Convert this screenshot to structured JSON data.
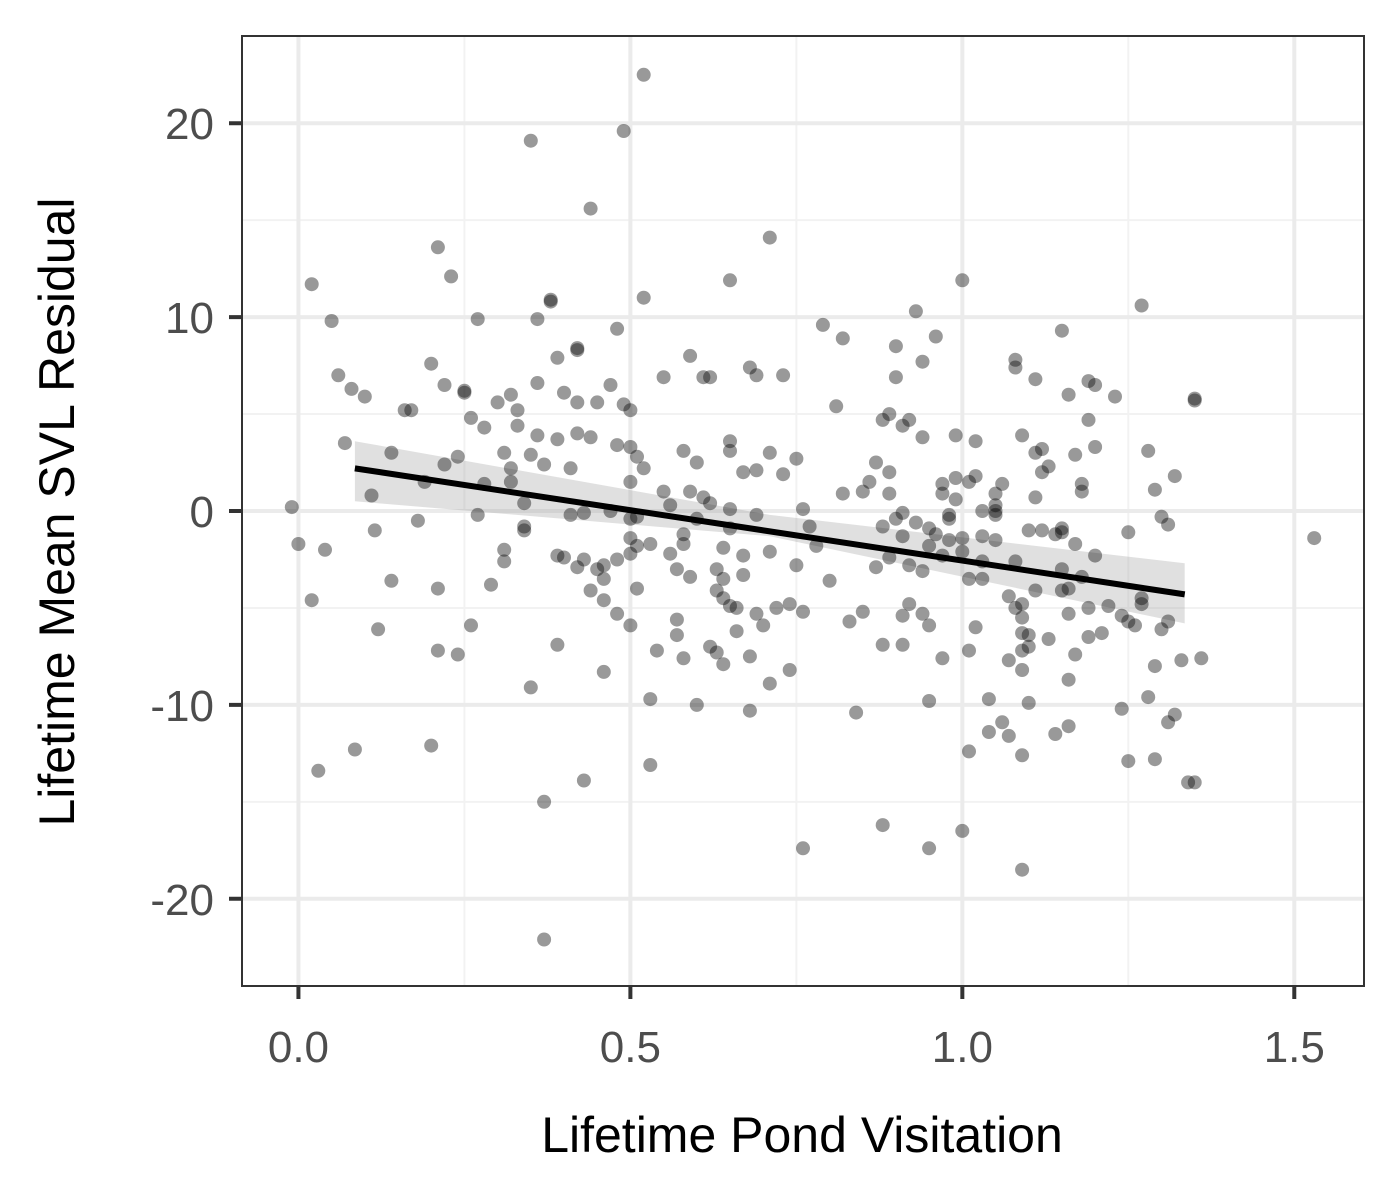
{
  "chart_data": {
    "type": "scatter",
    "title": "",
    "xlabel": "Lifetime Pond Visitation",
    "ylabel": "Lifetime Mean SVL Residual",
    "xlim": [
      -0.085,
      1.605
    ],
    "ylim": [
      -24.5,
      24.5
    ],
    "x_ticks": [
      0.0,
      0.5,
      1.0,
      1.5
    ],
    "x_tick_labels": [
      "0.0",
      "0.5",
      "1.0",
      "1.5"
    ],
    "x_minor_grid": [
      0.25,
      0.75,
      1.25
    ],
    "y_ticks": [
      -20,
      -10,
      0,
      10,
      20
    ],
    "y_tick_labels": [
      "-20",
      "-10",
      "0",
      "10",
      "20"
    ],
    "y_minor_grid": [
      -15,
      -5,
      5,
      15
    ],
    "grid": true,
    "legend": "none",
    "theme": "bw",
    "colors": {
      "point": "#000000",
      "point_opacity": 0.4,
      "fit_line": "#000000",
      "confidence_band": "#999999",
      "confidence_band_opacity": 0.3,
      "grid_major": "#ebebeb",
      "grid_minor": "#f2f2f2",
      "panel_border": "#333333",
      "tick_label": "#4d4d4d"
    },
    "fit": {
      "method": "linear",
      "x_range": [
        0.085,
        1.335
      ],
      "y_at_start": 2.2,
      "y_at_end": -4.3,
      "ci_lower_at_start": 0.5,
      "ci_upper_at_start": 3.6,
      "ci_lower_at_mid": -1.3,
      "ci_upper_at_mid": -0.2,
      "x_mid": 0.71,
      "ci_lower_at_end": -5.8,
      "ci_upper_at_end": -2.7
    },
    "points": [
      [
        -0.01,
        0.2
      ],
      [
        0.0,
        -1.7
      ],
      [
        0.02,
        11.7
      ],
      [
        0.03,
        -13.4
      ],
      [
        0.02,
        -4.6
      ],
      [
        0.04,
        -2.0
      ],
      [
        0.05,
        9.8
      ],
      [
        0.06,
        7.0
      ],
      [
        0.07,
        3.5
      ],
      [
        0.08,
        6.3
      ],
      [
        0.085,
        -12.3
      ],
      [
        0.1,
        5.9
      ],
      [
        0.11,
        0.8
      ],
      [
        0.115,
        -1.0
      ],
      [
        0.12,
        -6.1
      ],
      [
        0.14,
        3.0
      ],
      [
        0.14,
        -3.6
      ],
      [
        0.16,
        5.2
      ],
      [
        0.17,
        5.2
      ],
      [
        0.18,
        -0.5
      ],
      [
        0.19,
        1.5
      ],
      [
        0.2,
        7.6
      ],
      [
        0.2,
        -12.1
      ],
      [
        0.21,
        13.6
      ],
      [
        0.21,
        -7.2
      ],
      [
        0.21,
        -4.0
      ],
      [
        0.22,
        2.4
      ],
      [
        0.22,
        6.5
      ],
      [
        0.23,
        12.1
      ],
      [
        0.24,
        2.8
      ],
      [
        0.24,
        -7.4
      ],
      [
        0.25,
        6.2
      ],
      [
        0.25,
        6.1
      ],
      [
        0.26,
        4.8
      ],
      [
        0.26,
        -5.9
      ],
      [
        0.27,
        9.9
      ],
      [
        0.27,
        -0.2
      ],
      [
        0.28,
        1.4
      ],
      [
        0.28,
        4.3
      ],
      [
        0.29,
        -3.8
      ],
      [
        0.3,
        5.6
      ],
      [
        0.31,
        3.0
      ],
      [
        0.31,
        -2.0
      ],
      [
        0.31,
        -2.6
      ],
      [
        0.32,
        6.0
      ],
      [
        0.32,
        1.5
      ],
      [
        0.32,
        2.2
      ],
      [
        0.33,
        5.2
      ],
      [
        0.33,
        4.4
      ],
      [
        0.34,
        0.4
      ],
      [
        0.34,
        -0.8
      ],
      [
        0.34,
        -1.0
      ],
      [
        0.35,
        2.9
      ],
      [
        0.35,
        -9.1
      ],
      [
        0.35,
        19.1
      ],
      [
        0.36,
        9.9
      ],
      [
        0.36,
        6.6
      ],
      [
        0.36,
        3.9
      ],
      [
        0.37,
        2.4
      ],
      [
        0.37,
        -15.0
      ],
      [
        0.37,
        -22.1
      ],
      [
        0.38,
        10.9
      ],
      [
        0.38,
        10.8
      ],
      [
        0.39,
        7.9
      ],
      [
        0.39,
        3.7
      ],
      [
        0.39,
        -2.3
      ],
      [
        0.39,
        -6.9
      ],
      [
        0.4,
        -2.4
      ],
      [
        0.4,
        6.1
      ],
      [
        0.41,
        2.2
      ],
      [
        0.41,
        -0.2
      ],
      [
        0.42,
        8.3
      ],
      [
        0.42,
        8.4
      ],
      [
        0.42,
        5.6
      ],
      [
        0.42,
        4.0
      ],
      [
        0.42,
        -2.9
      ],
      [
        0.43,
        -13.9
      ],
      [
        0.43,
        -2.5
      ],
      [
        0.43,
        -0.1
      ],
      [
        0.44,
        3.8
      ],
      [
        0.44,
        15.6
      ],
      [
        0.44,
        -4.1
      ],
      [
        0.45,
        5.6
      ],
      [
        0.45,
        -3.0
      ],
      [
        0.46,
        -2.8
      ],
      [
        0.46,
        -8.3
      ],
      [
        0.46,
        -3.5
      ],
      [
        0.46,
        -4.6
      ],
      [
        0.47,
        6.5
      ],
      [
        0.47,
        0.0
      ],
      [
        0.48,
        9.4
      ],
      [
        0.48,
        3.4
      ],
      [
        0.48,
        -5.3
      ],
      [
        0.48,
        -2.5
      ],
      [
        0.49,
        19.6
      ],
      [
        0.49,
        5.5
      ],
      [
        0.5,
        5.2
      ],
      [
        0.5,
        1.5
      ],
      [
        0.5,
        3.3
      ],
      [
        0.5,
        -0.4
      ],
      [
        0.5,
        -1.4
      ],
      [
        0.5,
        -2.2
      ],
      [
        0.5,
        -5.9
      ],
      [
        0.51,
        -4.0
      ],
      [
        0.51,
        -0.3
      ],
      [
        0.51,
        -1.8
      ],
      [
        0.51,
        2.8
      ],
      [
        0.52,
        22.5
      ],
      [
        0.52,
        11.0
      ],
      [
        0.52,
        2.2
      ],
      [
        0.53,
        -1.7
      ],
      [
        0.53,
        -9.7
      ],
      [
        0.53,
        -13.1
      ],
      [
        0.54,
        -7.2
      ],
      [
        0.55,
        6.9
      ],
      [
        0.55,
        1.0
      ],
      [
        0.56,
        0.3
      ],
      [
        0.56,
        -2.2
      ],
      [
        0.57,
        -3.0
      ],
      [
        0.57,
        -5.6
      ],
      [
        0.57,
        -6.4
      ],
      [
        0.58,
        3.1
      ],
      [
        0.58,
        -7.6
      ],
      [
        0.58,
        -1.2
      ],
      [
        0.58,
        -1.7
      ],
      [
        0.59,
        1.0
      ],
      [
        0.59,
        -3.4
      ],
      [
        0.59,
        8.0
      ],
      [
        0.6,
        2.5
      ],
      [
        0.6,
        -10.0
      ],
      [
        0.6,
        -0.4
      ],
      [
        0.61,
        6.9
      ],
      [
        0.61,
        0.7
      ],
      [
        0.62,
        6.9
      ],
      [
        0.62,
        0.4
      ],
      [
        0.62,
        -7.0
      ],
      [
        0.63,
        -3.0
      ],
      [
        0.63,
        -4.1
      ],
      [
        0.63,
        -7.3
      ],
      [
        0.64,
        -4.5
      ],
      [
        0.64,
        -7.9
      ],
      [
        0.64,
        -1.9
      ],
      [
        0.64,
        -3.5
      ],
      [
        0.65,
        3.6
      ],
      [
        0.65,
        3.1
      ],
      [
        0.65,
        0.1
      ],
      [
        0.65,
        -0.9
      ],
      [
        0.65,
        -4.9
      ],
      [
        0.65,
        11.9
      ],
      [
        0.66,
        -6.2
      ],
      [
        0.66,
        -5.0
      ],
      [
        0.67,
        -2.3
      ],
      [
        0.67,
        -3.3
      ],
      [
        0.67,
        2.0
      ],
      [
        0.68,
        7.4
      ],
      [
        0.68,
        -10.3
      ],
      [
        0.68,
        -7.5
      ],
      [
        0.69,
        7.0
      ],
      [
        0.69,
        2.1
      ],
      [
        0.69,
        -5.3
      ],
      [
        0.69,
        -0.2
      ],
      [
        0.7,
        -5.9
      ],
      [
        0.71,
        14.1
      ],
      [
        0.71,
        3.0
      ],
      [
        0.71,
        -2.1
      ],
      [
        0.71,
        -8.9
      ],
      [
        0.72,
        -5.0
      ],
      [
        0.73,
        7.0
      ],
      [
        0.73,
        1.9
      ],
      [
        0.74,
        -4.8
      ],
      [
        0.74,
        -8.2
      ],
      [
        0.75,
        2.7
      ],
      [
        0.75,
        -2.8
      ],
      [
        0.76,
        0.1
      ],
      [
        0.76,
        -5.2
      ],
      [
        0.76,
        -17.4
      ],
      [
        0.77,
        -0.8
      ],
      [
        0.78,
        -1.8
      ],
      [
        0.79,
        9.6
      ],
      [
        0.8,
        -3.6
      ],
      [
        0.81,
        5.4
      ],
      [
        0.82,
        8.9
      ],
      [
        0.82,
        0.9
      ],
      [
        0.83,
        -5.7
      ],
      [
        0.84,
        -10.4
      ],
      [
        0.85,
        1.0
      ],
      [
        0.85,
        -5.2
      ],
      [
        0.86,
        1.5
      ],
      [
        0.87,
        2.5
      ],
      [
        0.87,
        -2.9
      ],
      [
        0.88,
        4.7
      ],
      [
        0.88,
        -0.8
      ],
      [
        0.88,
        -16.2
      ],
      [
        0.88,
        -6.9
      ],
      [
        0.89,
        0.9
      ],
      [
        0.89,
        -2.4
      ],
      [
        0.89,
        5.0
      ],
      [
        0.89,
        2.0
      ],
      [
        0.9,
        6.9
      ],
      [
        0.9,
        8.5
      ],
      [
        0.9,
        -0.4
      ],
      [
        0.91,
        4.4
      ],
      [
        0.91,
        -0.1
      ],
      [
        0.91,
        -1.3
      ],
      [
        0.91,
        -5.4
      ],
      [
        0.91,
        -6.9
      ],
      [
        0.92,
        4.7
      ],
      [
        0.92,
        -4.8
      ],
      [
        0.92,
        -2.8
      ],
      [
        0.93,
        10.3
      ],
      [
        0.93,
        -0.6
      ],
      [
        0.94,
        7.7
      ],
      [
        0.94,
        3.8
      ],
      [
        0.94,
        -5.3
      ],
      [
        0.94,
        -3.1
      ],
      [
        0.95,
        -0.9
      ],
      [
        0.95,
        -9.8
      ],
      [
        0.95,
        -17.4
      ],
      [
        0.95,
        -1.8
      ],
      [
        0.95,
        -5.9
      ],
      [
        0.96,
        9.0
      ],
      [
        0.96,
        -1.2
      ],
      [
        0.97,
        0.9
      ],
      [
        0.97,
        -2.3
      ],
      [
        0.97,
        -7.6
      ],
      [
        0.97,
        1.4
      ],
      [
        0.98,
        -0.4
      ],
      [
        0.98,
        -0.2
      ],
      [
        0.98,
        -1.5
      ],
      [
        0.99,
        1.7
      ],
      [
        0.99,
        0.6
      ],
      [
        0.99,
        3.9
      ],
      [
        1.0,
        11.9
      ],
      [
        1.0,
        -1.4
      ],
      [
        1.0,
        -2.1
      ],
      [
        1.0,
        -16.5
      ],
      [
        1.01,
        1.5
      ],
      [
        1.01,
        -3.5
      ],
      [
        1.01,
        -7.2
      ],
      [
        1.01,
        -12.4
      ],
      [
        1.02,
        3.6
      ],
      [
        1.02,
        1.8
      ],
      [
        1.02,
        -6.0
      ],
      [
        1.03,
        -1.3
      ],
      [
        1.03,
        0.0
      ],
      [
        1.03,
        -2.6
      ],
      [
        1.03,
        -3.5
      ],
      [
        1.04,
        -9.7
      ],
      [
        1.04,
        -11.4
      ],
      [
        1.05,
        0.9
      ],
      [
        1.05,
        -0.2
      ],
      [
        1.05,
        0.3
      ],
      [
        1.05,
        0.0
      ],
      [
        1.05,
        -1.5
      ],
      [
        1.06,
        -10.9
      ],
      [
        1.06,
        1.4
      ],
      [
        1.07,
        -4.4
      ],
      [
        1.07,
        -11.6
      ],
      [
        1.07,
        -7.7
      ],
      [
        1.08,
        7.8
      ],
      [
        1.08,
        7.4
      ],
      [
        1.08,
        -2.6
      ],
      [
        1.08,
        -5.0
      ],
      [
        1.09,
        3.9
      ],
      [
        1.09,
        -5.5
      ],
      [
        1.09,
        -4.8
      ],
      [
        1.09,
        -6.3
      ],
      [
        1.09,
        -7.2
      ],
      [
        1.09,
        -12.6
      ],
      [
        1.09,
        -18.5
      ],
      [
        1.09,
        -8.2
      ],
      [
        1.1,
        -6.4
      ],
      [
        1.1,
        -7.0
      ],
      [
        1.1,
        -9.9
      ],
      [
        1.1,
        -1.0
      ],
      [
        1.11,
        3.0
      ],
      [
        1.11,
        0.7
      ],
      [
        1.11,
        -4.1
      ],
      [
        1.11,
        6.8
      ],
      [
        1.12,
        2.0
      ],
      [
        1.12,
        -1.0
      ],
      [
        1.12,
        3.2
      ],
      [
        1.13,
        -6.6
      ],
      [
        1.13,
        2.3
      ],
      [
        1.14,
        -11.5
      ],
      [
        1.14,
        -1.2
      ],
      [
        1.15,
        -0.9
      ],
      [
        1.15,
        -4.1
      ],
      [
        1.15,
        9.3
      ],
      [
        1.15,
        -1.1
      ],
      [
        1.15,
        -3.0
      ],
      [
        1.16,
        -11.1
      ],
      [
        1.16,
        -4.0
      ],
      [
        1.16,
        -5.3
      ],
      [
        1.16,
        -8.7
      ],
      [
        1.16,
        6.0
      ],
      [
        1.17,
        2.9
      ],
      [
        1.17,
        -1.7
      ],
      [
        1.17,
        -7.4
      ],
      [
        1.18,
        1.4
      ],
      [
        1.18,
        1.0
      ],
      [
        1.18,
        -3.4
      ],
      [
        1.19,
        -6.5
      ],
      [
        1.19,
        -5.0
      ],
      [
        1.19,
        4.7
      ],
      [
        1.19,
        6.7
      ],
      [
        1.2,
        6.5
      ],
      [
        1.2,
        -2.3
      ],
      [
        1.2,
        3.3
      ],
      [
        1.21,
        -6.3
      ],
      [
        1.22,
        -4.9
      ],
      [
        1.23,
        5.9
      ],
      [
        1.24,
        -10.2
      ],
      [
        1.24,
        -5.4
      ],
      [
        1.25,
        -12.9
      ],
      [
        1.25,
        -5.7
      ],
      [
        1.25,
        -1.1
      ],
      [
        1.26,
        -5.9
      ],
      [
        1.27,
        -4.5
      ],
      [
        1.27,
        -4.8
      ],
      [
        1.27,
        10.6
      ],
      [
        1.28,
        -9.6
      ],
      [
        1.28,
        3.1
      ],
      [
        1.29,
        -8.0
      ],
      [
        1.29,
        -12.8
      ],
      [
        1.29,
        1.1
      ],
      [
        1.3,
        -6.1
      ],
      [
        1.3,
        -0.3
      ],
      [
        1.31,
        -10.9
      ],
      [
        1.31,
        -0.7
      ],
      [
        1.31,
        -5.7
      ],
      [
        1.32,
        -10.5
      ],
      [
        1.32,
        1.8
      ],
      [
        1.33,
        -7.7
      ],
      [
        1.34,
        -14.0
      ],
      [
        1.35,
        5.8
      ],
      [
        1.35,
        5.7
      ],
      [
        1.35,
        -14.0
      ],
      [
        1.36,
        -7.6
      ],
      [
        1.53,
        -1.4
      ]
    ]
  }
}
